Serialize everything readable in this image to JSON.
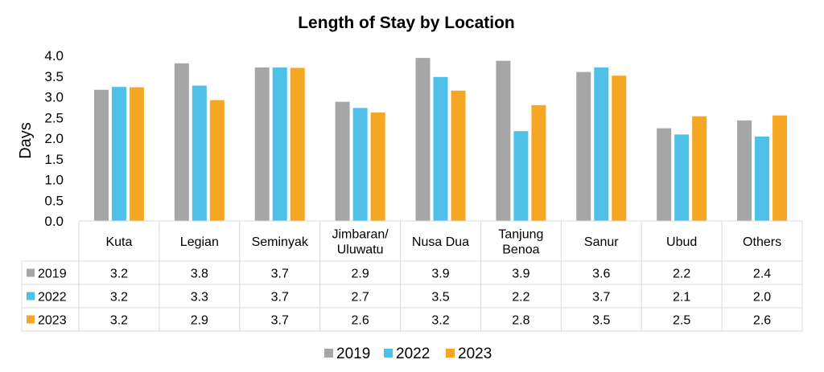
{
  "chart_data": {
    "type": "bar",
    "title": "Length of Stay by Location",
    "ylabel": "Days",
    "ylim": [
      0,
      4.0
    ],
    "yticks": [
      "0.0",
      "0.5",
      "1.0",
      "1.5",
      "2.0",
      "2.5",
      "3.0",
      "3.5",
      "4.0"
    ],
    "grid": false,
    "legend_position": "bottom",
    "data_table": true,
    "categories": [
      [
        "Kuta"
      ],
      [
        "Legian"
      ],
      [
        "Seminyak"
      ],
      [
        "Jimbaran/",
        "Uluwatu"
      ],
      [
        "Nusa Dua"
      ],
      [
        "Tanjung",
        "Benoa"
      ],
      [
        "Sanur"
      ],
      [
        "Ubud"
      ],
      [
        "Others"
      ]
    ],
    "series": [
      {
        "name": "2019",
        "color": "#A6A6A6",
        "values": [
          3.17,
          3.81,
          3.71,
          2.88,
          3.94,
          3.87,
          3.6,
          2.24,
          2.43
        ],
        "labels": [
          "3.2",
          "3.8",
          "3.7",
          "2.9",
          "3.9",
          "3.9",
          "3.6",
          "2.2",
          "2.4"
        ]
      },
      {
        "name": "2022",
        "color": "#4FC1E9",
        "values": [
          3.24,
          3.27,
          3.71,
          2.73,
          3.48,
          2.17,
          3.71,
          2.09,
          2.04
        ],
        "labels": [
          "3.2",
          "3.3",
          "3.7",
          "2.7",
          "3.5",
          "2.2",
          "3.7",
          "2.1",
          "2.0"
        ]
      },
      {
        "name": "2023",
        "color": "#F5A623",
        "values": [
          3.23,
          2.92,
          3.7,
          2.62,
          3.15,
          2.8,
          3.51,
          2.53,
          2.55
        ],
        "labels": [
          "3.2",
          "2.9",
          "3.7",
          "2.6",
          "3.2",
          "2.8",
          "3.5",
          "2.5",
          "2.6"
        ]
      }
    ]
  }
}
